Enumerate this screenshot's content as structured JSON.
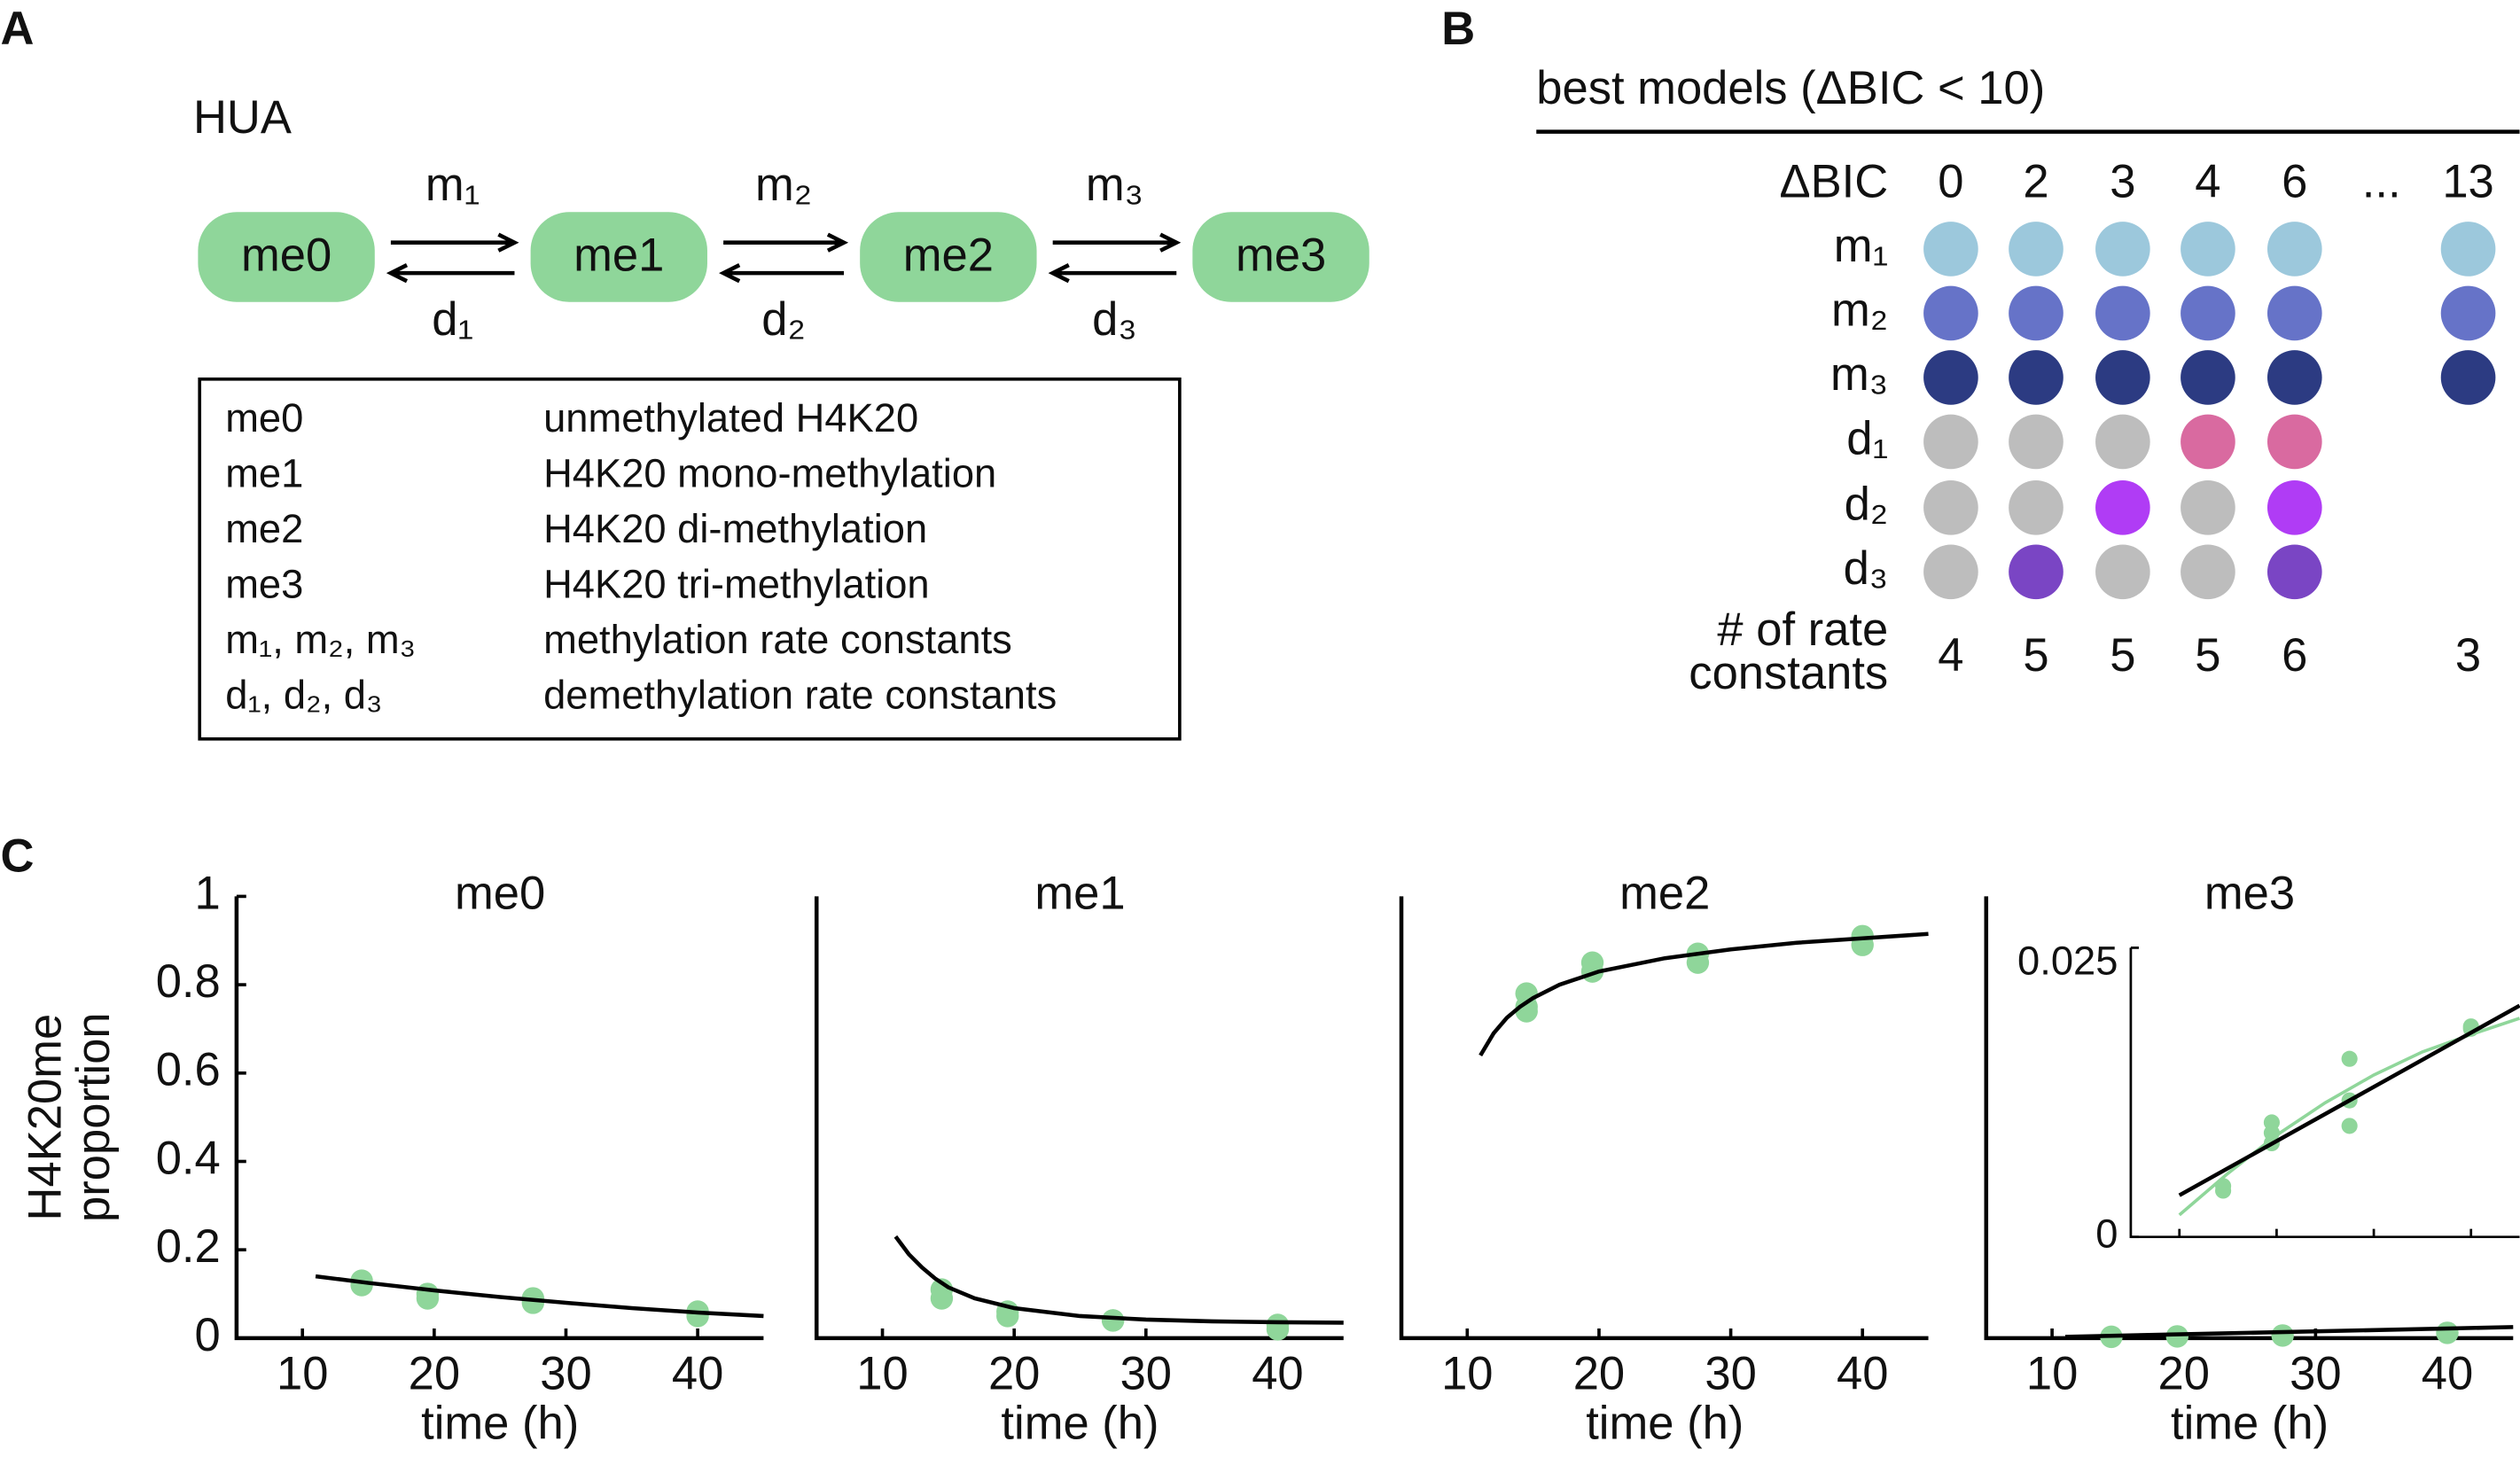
{
  "panel_labels": [
    "A",
    "B",
    "C"
  ],
  "panel_a": {
    "title": "HUA",
    "nodes": [
      "me0",
      "me1",
      "me2",
      "me3"
    ],
    "forward_rates": [
      "m₁",
      "m₂",
      "m₃"
    ],
    "backward_rates": [
      "d₁",
      "d₂",
      "d₃"
    ],
    "legend": [
      [
        "me0",
        "unmethylated H4K20"
      ],
      [
        "me1",
        "H4K20 mono-methylation"
      ],
      [
        "me2",
        "H4K20 di-methylation"
      ],
      [
        "me3",
        "H4K20 tri-methylation"
      ],
      [
        "m₁, m₂, m₃",
        "methylation rate constants"
      ],
      [
        "d₁, d₂, d₃",
        "demethylation rate constants"
      ]
    ]
  },
  "panel_b": {
    "title": "best models (ΔBIC < 10)",
    "header_label": "ΔBIC",
    "columns": [
      0,
      2,
      3,
      4,
      6,
      "...",
      13
    ],
    "rows": [
      {
        "label": "m₁",
        "colors": [
          "#9cc8dc",
          "#9cc8dc",
          "#9cc8dc",
          "#9cc8dc",
          "#9cc8dc",
          null,
          "#9cc8dc"
        ]
      },
      {
        "label": "m₂",
        "colors": [
          "#6673c8",
          "#6673c8",
          "#6673c8",
          "#6673c8",
          "#6673c8",
          null,
          "#6673c8"
        ]
      },
      {
        "label": "m₃",
        "colors": [
          "#2c3b82",
          "#2c3b82",
          "#2c3b82",
          "#2c3b82",
          "#2c3b82",
          null,
          "#2c3b82"
        ]
      },
      {
        "label": "d₁",
        "colors": [
          "#bdbdbd",
          "#bdbdbd",
          "#bdbdbd",
          "#d96aa0",
          "#d96aa0",
          null,
          null
        ]
      },
      {
        "label": "d₂",
        "colors": [
          "#bdbdbd",
          "#bdbdbd",
          "#b03cf5",
          "#bdbdbd",
          "#b03cf5",
          null,
          null
        ]
      },
      {
        "label": "d₃",
        "colors": [
          "#bdbdbd",
          "#7a45c4",
          "#bdbdbd",
          "#bdbdbd",
          "#7a45c4",
          null,
          null
        ]
      }
    ],
    "count_label": [
      "# of rate",
      "constants"
    ],
    "counts": [
      4,
      5,
      5,
      5,
      6,
      null,
      3
    ]
  },
  "chart_data": [
    {
      "type": "scatter",
      "title": "me0",
      "ylabel": [
        "H4K20me",
        "proportion"
      ],
      "xlabel": "time (h)",
      "xlim": [
        5,
        45
      ],
      "xticks": [
        10,
        20,
        30,
        40
      ],
      "ylim": [
        0,
        1
      ],
      "yticks": [
        0,
        0.2,
        0.4,
        0.6,
        0.8,
        1
      ],
      "point_color": "#8fd69a",
      "line_color": "#000000",
      "points": {
        "x": [
          14.5,
          14.5,
          19.5,
          19.5,
          27.5,
          27.5,
          40,
          40
        ],
        "y": [
          0.13,
          0.12,
          0.09,
          0.1,
          0.09,
          0.08,
          0.06,
          0.05
        ]
      },
      "fit": {
        "x": [
          11,
          15,
          20,
          25,
          30,
          35,
          40,
          45
        ],
        "y": [
          0.14,
          0.125,
          0.108,
          0.093,
          0.08,
          0.068,
          0.058,
          0.05
        ]
      }
    },
    {
      "type": "scatter",
      "title": "me1",
      "xlabel": "time (h)",
      "xlim": [
        5,
        45
      ],
      "xticks": [
        10,
        20,
        30,
        40
      ],
      "ylim": [
        0,
        1
      ],
      "point_color": "#8fd69a",
      "line_color": "#000000",
      "points": {
        "x": [
          14.5,
          14.5,
          19.5,
          19.5,
          27.5,
          27.5,
          40,
          40
        ],
        "y": [
          0.11,
          0.09,
          0.06,
          0.05,
          0.04,
          0.04,
          0.03,
          0.02
        ]
      },
      "fit": {
        "x": [
          11,
          12,
          13,
          14,
          15,
          17,
          20,
          25,
          30,
          35,
          40,
          45
        ],
        "y": [
          0.23,
          0.19,
          0.16,
          0.135,
          0.115,
          0.09,
          0.068,
          0.05,
          0.042,
          0.038,
          0.036,
          0.035
        ]
      }
    },
    {
      "type": "scatter",
      "title": "me2",
      "xlabel": "time (h)",
      "xlim": [
        5,
        45
      ],
      "xticks": [
        10,
        20,
        30,
        40
      ],
      "ylim": [
        0,
        1
      ],
      "point_color": "#8fd69a",
      "line_color": "#000000",
      "points": {
        "x": [
          14.5,
          14.5,
          14.5,
          19.5,
          19.5,
          27.5,
          27.5,
          40,
          40
        ],
        "y": [
          0.78,
          0.75,
          0.74,
          0.85,
          0.83,
          0.87,
          0.85,
          0.91,
          0.89
        ]
      },
      "fit": {
        "x": [
          11,
          12,
          13,
          14,
          15,
          17,
          20,
          25,
          30,
          35,
          40,
          45
        ],
        "y": [
          0.64,
          0.69,
          0.725,
          0.75,
          0.77,
          0.8,
          0.83,
          0.86,
          0.88,
          0.895,
          0.905,
          0.915
        ]
      }
    },
    {
      "type": "scatter",
      "title": "me3",
      "xlabel": "time (h)",
      "xlim": [
        5,
        45
      ],
      "xticks": [
        10,
        20,
        30,
        40
      ],
      "ylim": [
        0,
        1
      ],
      "point_color": "#8fd69a",
      "line_color": "#000000",
      "points": {
        "x": [
          14.5,
          19.5,
          27.5,
          40
        ],
        "y": [
          0.003,
          0.004,
          0.006,
          0.012
        ]
      },
      "fit": {
        "x": [
          11,
          45
        ],
        "y": [
          0.003,
          0.025
        ]
      },
      "inset": {
        "xlim": [
          5,
          45
        ],
        "xticks": [
          10,
          20,
          30,
          40
        ],
        "ylim": [
          0,
          0.025
        ],
        "yticks": [
          0,
          0.025
        ],
        "points": {
          "x": [
            14.5,
            14.5,
            19.5,
            19.5,
            19.5,
            27.5,
            27.5,
            27.5,
            40,
            40
          ],
          "y": [
            0.0044,
            0.004,
            0.0099,
            0.0081,
            0.009,
            0.0154,
            0.0118,
            0.0096,
            0.0182,
            0.018
          ]
        },
        "fit": {
          "x": [
            10,
            45
          ],
          "y": [
            0.0036,
            0.02
          ]
        },
        "model_fit": {
          "x": [
            10,
            15,
            20,
            25,
            30,
            35,
            40,
            45
          ],
          "y": [
            0.0019,
            0.0055,
            0.0088,
            0.0116,
            0.014,
            0.016,
            0.0175,
            0.0189
          ]
        }
      }
    }
  ]
}
